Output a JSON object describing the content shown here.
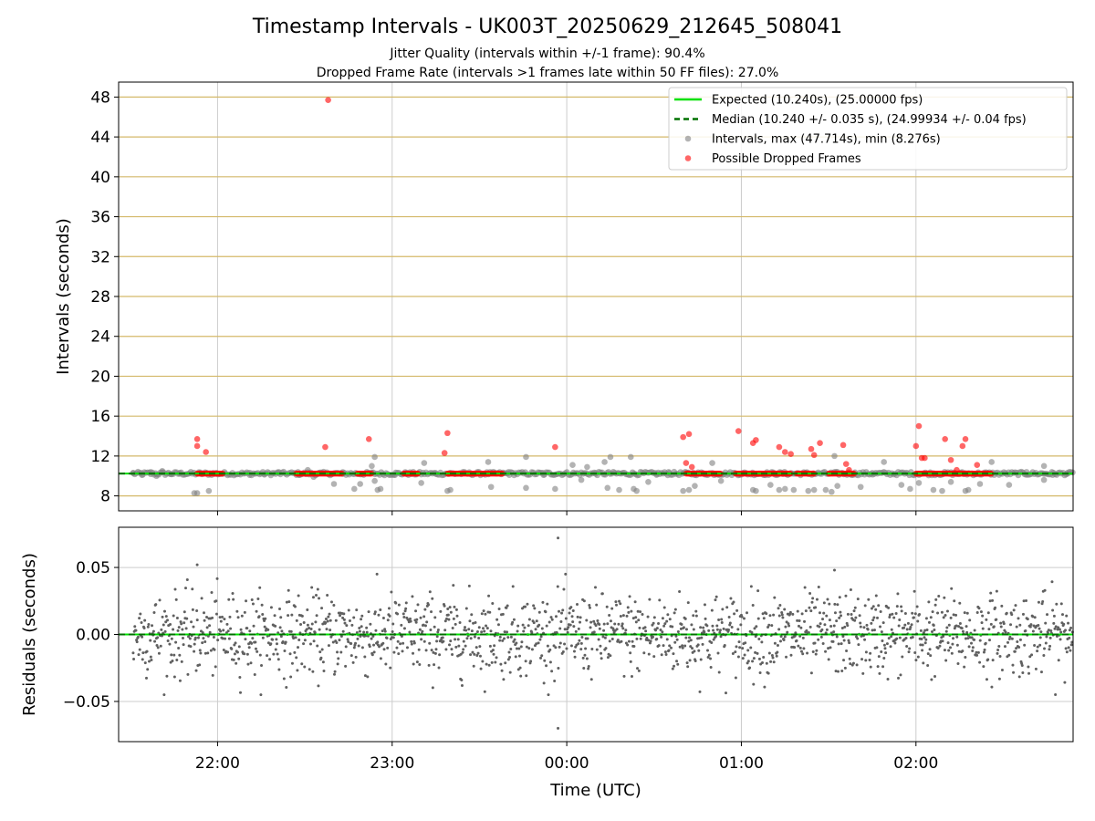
{
  "figure": {
    "title": "Timestamp Intervals - UK003T_20250629_212645_508041",
    "subtitle_1": "Jitter Quality (intervals within +/-1 frame): 90.4%",
    "subtitle_2": "Dropped Frame Rate (intervals >1 frames late within 50 FF files): 27.0%",
    "xlabel": "Time (UTC)"
  },
  "colors": {
    "expected": "#00e000",
    "median": "#007000",
    "intervals": "#808080",
    "dropped": "#ff0000",
    "hgrid_top": "#d4b96a",
    "grid": "#cccccc",
    "residual_points": "#606060"
  },
  "chart_data": [
    {
      "type": "scatter",
      "panel": "top",
      "ylabel": "Intervals (seconds)",
      "x_axis": "time",
      "xlim": [
        "21:26",
        "02:54"
      ],
      "ylim": [
        6.5,
        49.5
      ],
      "yticks": [
        8,
        12,
        16,
        20,
        24,
        28,
        32,
        36,
        40,
        44,
        48
      ],
      "xticks": [
        "22:00",
        "23:00",
        "00:00",
        "01:00",
        "02:00"
      ],
      "grid": true,
      "legend_position": "top-right",
      "lines": [
        {
          "name": "Expected (10.240s), (25.00000 fps)",
          "y": 10.24,
          "style": "solid"
        },
        {
          "name": "Median (10.240 +/- 0.035 s), (24.99934 +/- 0.04 fps)",
          "y": 10.24,
          "style": "dashed"
        }
      ],
      "series": [
        {
          "name": "Intervals, max (47.714s), min (8.276s)",
          "points": [
            [
              "21:52",
              8.28
            ],
            [
              "21:53",
              8.28
            ],
            [
              "21:57",
              8.5
            ],
            [
              "22:33",
              9.9
            ],
            [
              "22:40",
              9.2
            ],
            [
              "22:47",
              8.7
            ],
            [
              "22:49",
              9.2
            ],
            [
              "22:53",
              11.0
            ],
            [
              "22:54",
              11.9
            ],
            [
              "22:55",
              8.6
            ],
            [
              "22:56",
              8.7
            ],
            [
              "22:54",
              9.5
            ],
            [
              "23:10",
              9.3
            ],
            [
              "23:11",
              11.3
            ],
            [
              "23:19",
              8.5
            ],
            [
              "23:20",
              8.6
            ],
            [
              "23:33",
              11.4
            ],
            [
              "23:34",
              8.9
            ],
            [
              "23:46",
              11.9
            ],
            [
              "23:46",
              8.8
            ],
            [
              "23:56",
              8.7
            ],
            [
              "00:02",
              11.1
            ],
            [
              "00:05",
              9.6
            ],
            [
              "00:07",
              10.9
            ],
            [
              "00:13",
              11.4
            ],
            [
              "00:14",
              8.8
            ],
            [
              "00:15",
              11.9
            ],
            [
              "00:18",
              8.6
            ],
            [
              "00:22",
              11.9
            ],
            [
              "00:23",
              8.7
            ],
            [
              "00:24",
              8.5
            ],
            [
              "00:28",
              9.4
            ],
            [
              "00:40",
              8.5
            ],
            [
              "00:42",
              8.6
            ],
            [
              "00:44",
              9.0
            ],
            [
              "00:50",
              11.3
            ],
            [
              "00:53",
              9.5
            ],
            [
              "01:04",
              8.6
            ],
            [
              "01:05",
              8.5
            ],
            [
              "01:10",
              9.1
            ],
            [
              "01:13",
              8.6
            ],
            [
              "01:15",
              8.7
            ],
            [
              "01:18",
              8.6
            ],
            [
              "01:23",
              8.5
            ],
            [
              "01:25",
              8.6
            ],
            [
              "01:29",
              8.6
            ],
            [
              "01:31",
              8.4
            ],
            [
              "01:32",
              12.0
            ],
            [
              "01:33",
              9.0
            ],
            [
              "01:41",
              8.9
            ],
            [
              "01:49",
              11.4
            ],
            [
              "01:55",
              9.1
            ],
            [
              "01:58",
              8.7
            ],
            [
              "02:01",
              9.3
            ],
            [
              "02:06",
              8.6
            ],
            [
              "02:09",
              8.5
            ],
            [
              "02:12",
              9.4
            ],
            [
              "02:17",
              8.5
            ],
            [
              "02:18",
              8.6
            ],
            [
              "02:22",
              9.2
            ],
            [
              "02:26",
              11.4
            ],
            [
              "02:32",
              9.1
            ],
            [
              "02:44",
              9.6
            ],
            [
              "02:44",
              11.0
            ],
            [
              "21:31",
              10.3
            ],
            [
              "21:34",
              10.1
            ],
            [
              "21:37",
              10.4
            ],
            [
              "21:39",
              10.0
            ],
            [
              "21:41",
              10.5
            ],
            [
              "21:44",
              10.2
            ],
            [
              "21:47",
              10.3
            ],
            [
              "22:11",
              10.1
            ],
            [
              "22:16",
              10.2
            ],
            [
              "22:21",
              10.4
            ],
            [
              "22:28",
              10.1
            ],
            [
              "22:31",
              10.6
            ],
            [
              "22:43",
              10.2
            ],
            [
              "23:01",
              10.1
            ],
            [
              "23:05",
              10.3
            ],
            [
              "23:15",
              10.2
            ],
            [
              "23:40",
              10.4
            ],
            [
              "23:52",
              10.1
            ],
            [
              "00:10",
              10.3
            ],
            [
              "00:31",
              10.2
            ],
            [
              "00:35",
              10.4
            ],
            [
              "00:52",
              10.2
            ],
            [
              "01:45",
              10.3
            ],
            [
              "02:14",
              10.2
            ],
            [
              "02:38",
              10.4
            ],
            [
              "02:47",
              10.1
            ],
            [
              "02:52",
              10.3
            ]
          ]
        },
        {
          "name": "Possible Dropped Frames",
          "points": [
            [
              "22:38",
              47.7
            ],
            [
              "21:53",
              13.7
            ],
            [
              "21:53",
              13.0
            ],
            [
              "21:56",
              12.4
            ],
            [
              "22:37",
              12.9
            ],
            [
              "22:52",
              13.7
            ],
            [
              "23:19",
              14.3
            ],
            [
              "23:18",
              12.3
            ],
            [
              "23:56",
              12.9
            ],
            [
              "00:40",
              13.9
            ],
            [
              "00:42",
              14.2
            ],
            [
              "00:41",
              11.3
            ],
            [
              "00:43",
              10.9
            ],
            [
              "00:59",
              14.5
            ],
            [
              "01:04",
              13.3
            ],
            [
              "01:05",
              13.6
            ],
            [
              "01:13",
              12.9
            ],
            [
              "01:15",
              12.4
            ],
            [
              "01:17",
              12.2
            ],
            [
              "01:24",
              12.7
            ],
            [
              "01:25",
              12.1
            ],
            [
              "01:27",
              13.3
            ],
            [
              "01:35",
              13.1
            ],
            [
              "01:36",
              11.2
            ],
            [
              "01:37",
              10.6
            ],
            [
              "02:00",
              13.0
            ],
            [
              "02:01",
              15.0
            ],
            [
              "02:02",
              11.8
            ],
            [
              "02:03",
              11.8
            ],
            [
              "02:10",
              13.7
            ],
            [
              "02:12",
              11.6
            ],
            [
              "02:14",
              10.6
            ],
            [
              "02:16",
              13.0
            ],
            [
              "02:17",
              13.7
            ],
            [
              "02:21",
              11.1
            ]
          ],
          "dense_runs_at_y": 10.24,
          "dense_runs": [
            [
              "21:53",
              "22:02"
            ],
            [
              "22:27",
              "22:43"
            ],
            [
              "22:48",
              "22:53"
            ],
            [
              "23:04",
              "23:09"
            ],
            [
              "23:19",
              "23:38"
            ],
            [
              "00:41",
              "00:53"
            ],
            [
              "00:58",
              "01:07"
            ],
            [
              "01:06",
              "01:17"
            ],
            [
              "01:19",
              "01:25"
            ],
            [
              "01:30",
              "01:39"
            ],
            [
              "02:00",
              "02:26"
            ]
          ]
        }
      ]
    },
    {
      "type": "scatter",
      "panel": "bottom",
      "ylabel": "Residuals (seconds)",
      "x_axis": "time",
      "xlim": [
        "21:26",
        "02:54"
      ],
      "ylim": [
        -0.08,
        0.08
      ],
      "yticks": [
        -0.05,
        0.0,
        0.05
      ],
      "ytick_labels": [
        "−0.05",
        "0.00",
        "0.05"
      ],
      "xticks": [
        "22:00",
        "23:00",
        "00:00",
        "01:00",
        "02:00"
      ],
      "xlabel": "Time (UTC)",
      "grid": true,
      "zero_line": 0.0,
      "residual_spread_sd": 0.015,
      "outliers": [
        [
          "23:57",
          0.072
        ],
        [
          "23:57",
          -0.07
        ],
        [
          "21:53",
          0.052
        ],
        [
          "01:32",
          0.048
        ]
      ],
      "sample_interval_s": 10.24
    }
  ]
}
